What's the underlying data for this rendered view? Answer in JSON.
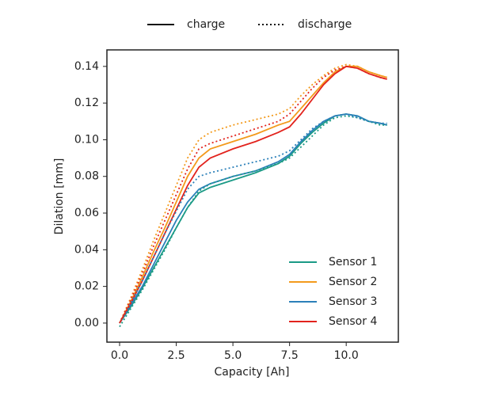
{
  "chart_data": {
    "type": "line",
    "x_label": "Capacity [Ah]",
    "y_label": "Dilation [mm]",
    "line_styles": [
      {
        "label": "charge",
        "dash": "solid"
      },
      {
        "label": "discharge",
        "dash": "dotted"
      }
    ],
    "x": [
      0,
      0.5,
      1,
      1.5,
      2,
      2.5,
      3,
      3.5,
      4,
      5,
      6,
      7,
      7.5,
      8,
      8.5,
      9,
      9.5,
      10,
      10.5,
      11,
      11.5,
      11.8
    ],
    "series": [
      {
        "name": "Sensor 1",
        "color": "#1b9a86",
        "style": 0,
        "values": [
          0,
          0.009,
          0.019,
          0.03,
          0.041,
          0.052,
          0.063,
          0.071,
          0.074,
          0.078,
          0.082,
          0.087,
          0.091,
          0.098,
          0.104,
          0.109,
          0.113,
          0.114,
          0.113,
          0.11,
          0.109,
          0.108
        ]
      },
      {
        "name": "Sensor 2",
        "color": "#f39a1c",
        "style": 0,
        "values": [
          0,
          0.012,
          0.025,
          0.039,
          0.052,
          0.066,
          0.08,
          0.09,
          0.095,
          0.099,
          0.103,
          0.108,
          0.11,
          0.117,
          0.124,
          0.131,
          0.137,
          0.14,
          0.14,
          0.137,
          0.135,
          0.134
        ]
      },
      {
        "name": "Sensor 3",
        "color": "#2b80b9",
        "style": 0,
        "values": [
          0,
          0.01,
          0.02,
          0.032,
          0.044,
          0.056,
          0.066,
          0.073,
          0.076,
          0.08,
          0.083,
          0.088,
          0.092,
          0.099,
          0.105,
          0.11,
          0.113,
          0.114,
          0.113,
          0.11,
          0.109,
          0.108
        ]
      },
      {
        "name": "Sensor 4",
        "color": "#e2231d",
        "style": 0,
        "values": [
          0,
          0.011,
          0.023,
          0.036,
          0.049,
          0.062,
          0.075,
          0.085,
          0.09,
          0.095,
          0.099,
          0.104,
          0.107,
          0.114,
          0.122,
          0.13,
          0.136,
          0.14,
          0.139,
          0.136,
          0.134,
          0.133
        ]
      },
      {
        "name": "Sensor 1",
        "color": "#1b9a86",
        "style": 1,
        "values": [
          -0.002,
          0.008,
          0.018,
          0.029,
          0.04,
          0.052,
          0.063,
          0.072,
          0.076,
          0.08,
          0.083,
          0.087,
          0.09,
          0.096,
          0.102,
          0.108,
          0.112,
          0.113,
          0.112,
          0.11,
          0.108,
          0.108
        ]
      },
      {
        "name": "Sensor 2",
        "color": "#f39a1c",
        "style": 1,
        "values": [
          0,
          0.014,
          0.029,
          0.045,
          0.06,
          0.075,
          0.09,
          0.1,
          0.104,
          0.108,
          0.111,
          0.114,
          0.117,
          0.124,
          0.13,
          0.135,
          0.139,
          0.141,
          0.14,
          0.137,
          0.135,
          0.134
        ]
      },
      {
        "name": "Sensor 3",
        "color": "#2b80b9",
        "style": 1,
        "values": [
          0,
          0.011,
          0.023,
          0.036,
          0.049,
          0.061,
          0.073,
          0.08,
          0.082,
          0.085,
          0.088,
          0.091,
          0.094,
          0.1,
          0.106,
          0.11,
          0.113,
          0.114,
          0.112,
          0.11,
          0.109,
          0.109
        ]
      },
      {
        "name": "Sensor 4",
        "color": "#e2231d",
        "style": 1,
        "values": [
          0,
          0.013,
          0.027,
          0.042,
          0.056,
          0.07,
          0.084,
          0.095,
          0.098,
          0.102,
          0.106,
          0.11,
          0.114,
          0.121,
          0.128,
          0.134,
          0.138,
          0.14,
          0.139,
          0.136,
          0.134,
          0.133
        ]
      }
    ],
    "xlim": [
      -0.56,
      12.3
    ],
    "ylim": [
      -0.0104,
      0.149
    ],
    "xticks": [
      {
        "value": 0,
        "label": "0.0"
      },
      {
        "value": 2.5,
        "label": "2.5"
      },
      {
        "value": 5,
        "label": "5.0"
      },
      {
        "value": 7.5,
        "label": "7.5"
      },
      {
        "value": 10,
        "label": "10.0"
      }
    ],
    "yticks": [
      {
        "value": 0,
        "label": "0.00"
      },
      {
        "value": 0.02,
        "label": "0.02"
      },
      {
        "value": 0.04,
        "label": "0.04"
      },
      {
        "value": 0.06,
        "label": "0.06"
      },
      {
        "value": 0.08,
        "label": "0.08"
      },
      {
        "value": 0.1,
        "label": "0.10"
      },
      {
        "value": 0.12,
        "label": "0.12"
      },
      {
        "value": 0.14,
        "label": "0.14"
      }
    ],
    "grid": false,
    "legend": "lower right"
  }
}
